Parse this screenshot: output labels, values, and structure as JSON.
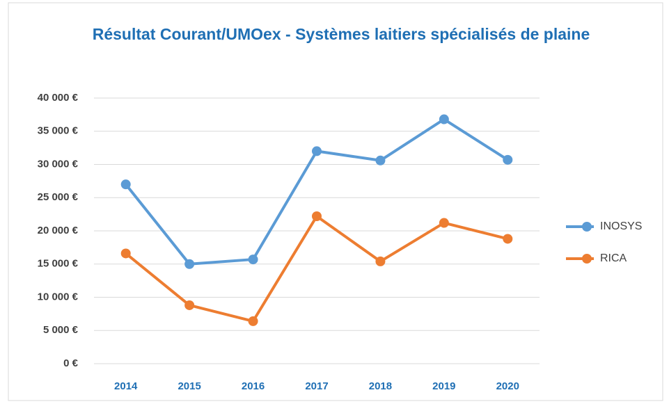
{
  "chart_data": {
    "type": "line",
    "title": "Résultat Courant/UMOex - Systèmes laitiers spécialisés de plaine",
    "categories": [
      "2014",
      "2015",
      "2016",
      "2017",
      "2018",
      "2019",
      "2020"
    ],
    "series": [
      {
        "name": "INOSYS",
        "color": "#5b9bd5",
        "values": [
          27000,
          15000,
          15700,
          32000,
          30600,
          36800,
          30700
        ]
      },
      {
        "name": "RICA",
        "color": "#ed7d31",
        "values": [
          16600,
          8800,
          6400,
          22200,
          15400,
          21200,
          18800
        ]
      }
    ],
    "ylim": [
      0,
      40000
    ],
    "yticks": [
      {
        "value": 0,
        "label": "0 €"
      },
      {
        "value": 5000,
        "label": "5 000 €"
      },
      {
        "value": 10000,
        "label": "10 000 €"
      },
      {
        "value": 15000,
        "label": "15 000 €"
      },
      {
        "value": 20000,
        "label": "20 000 €"
      },
      {
        "value": 25000,
        "label": "25 000 €"
      },
      {
        "value": 30000,
        "label": "30 000 €"
      },
      {
        "value": 35000,
        "label": "35 000 €"
      },
      {
        "value": 40000,
        "label": "40 000 €"
      }
    ],
    "grid": true,
    "legend": "right"
  }
}
